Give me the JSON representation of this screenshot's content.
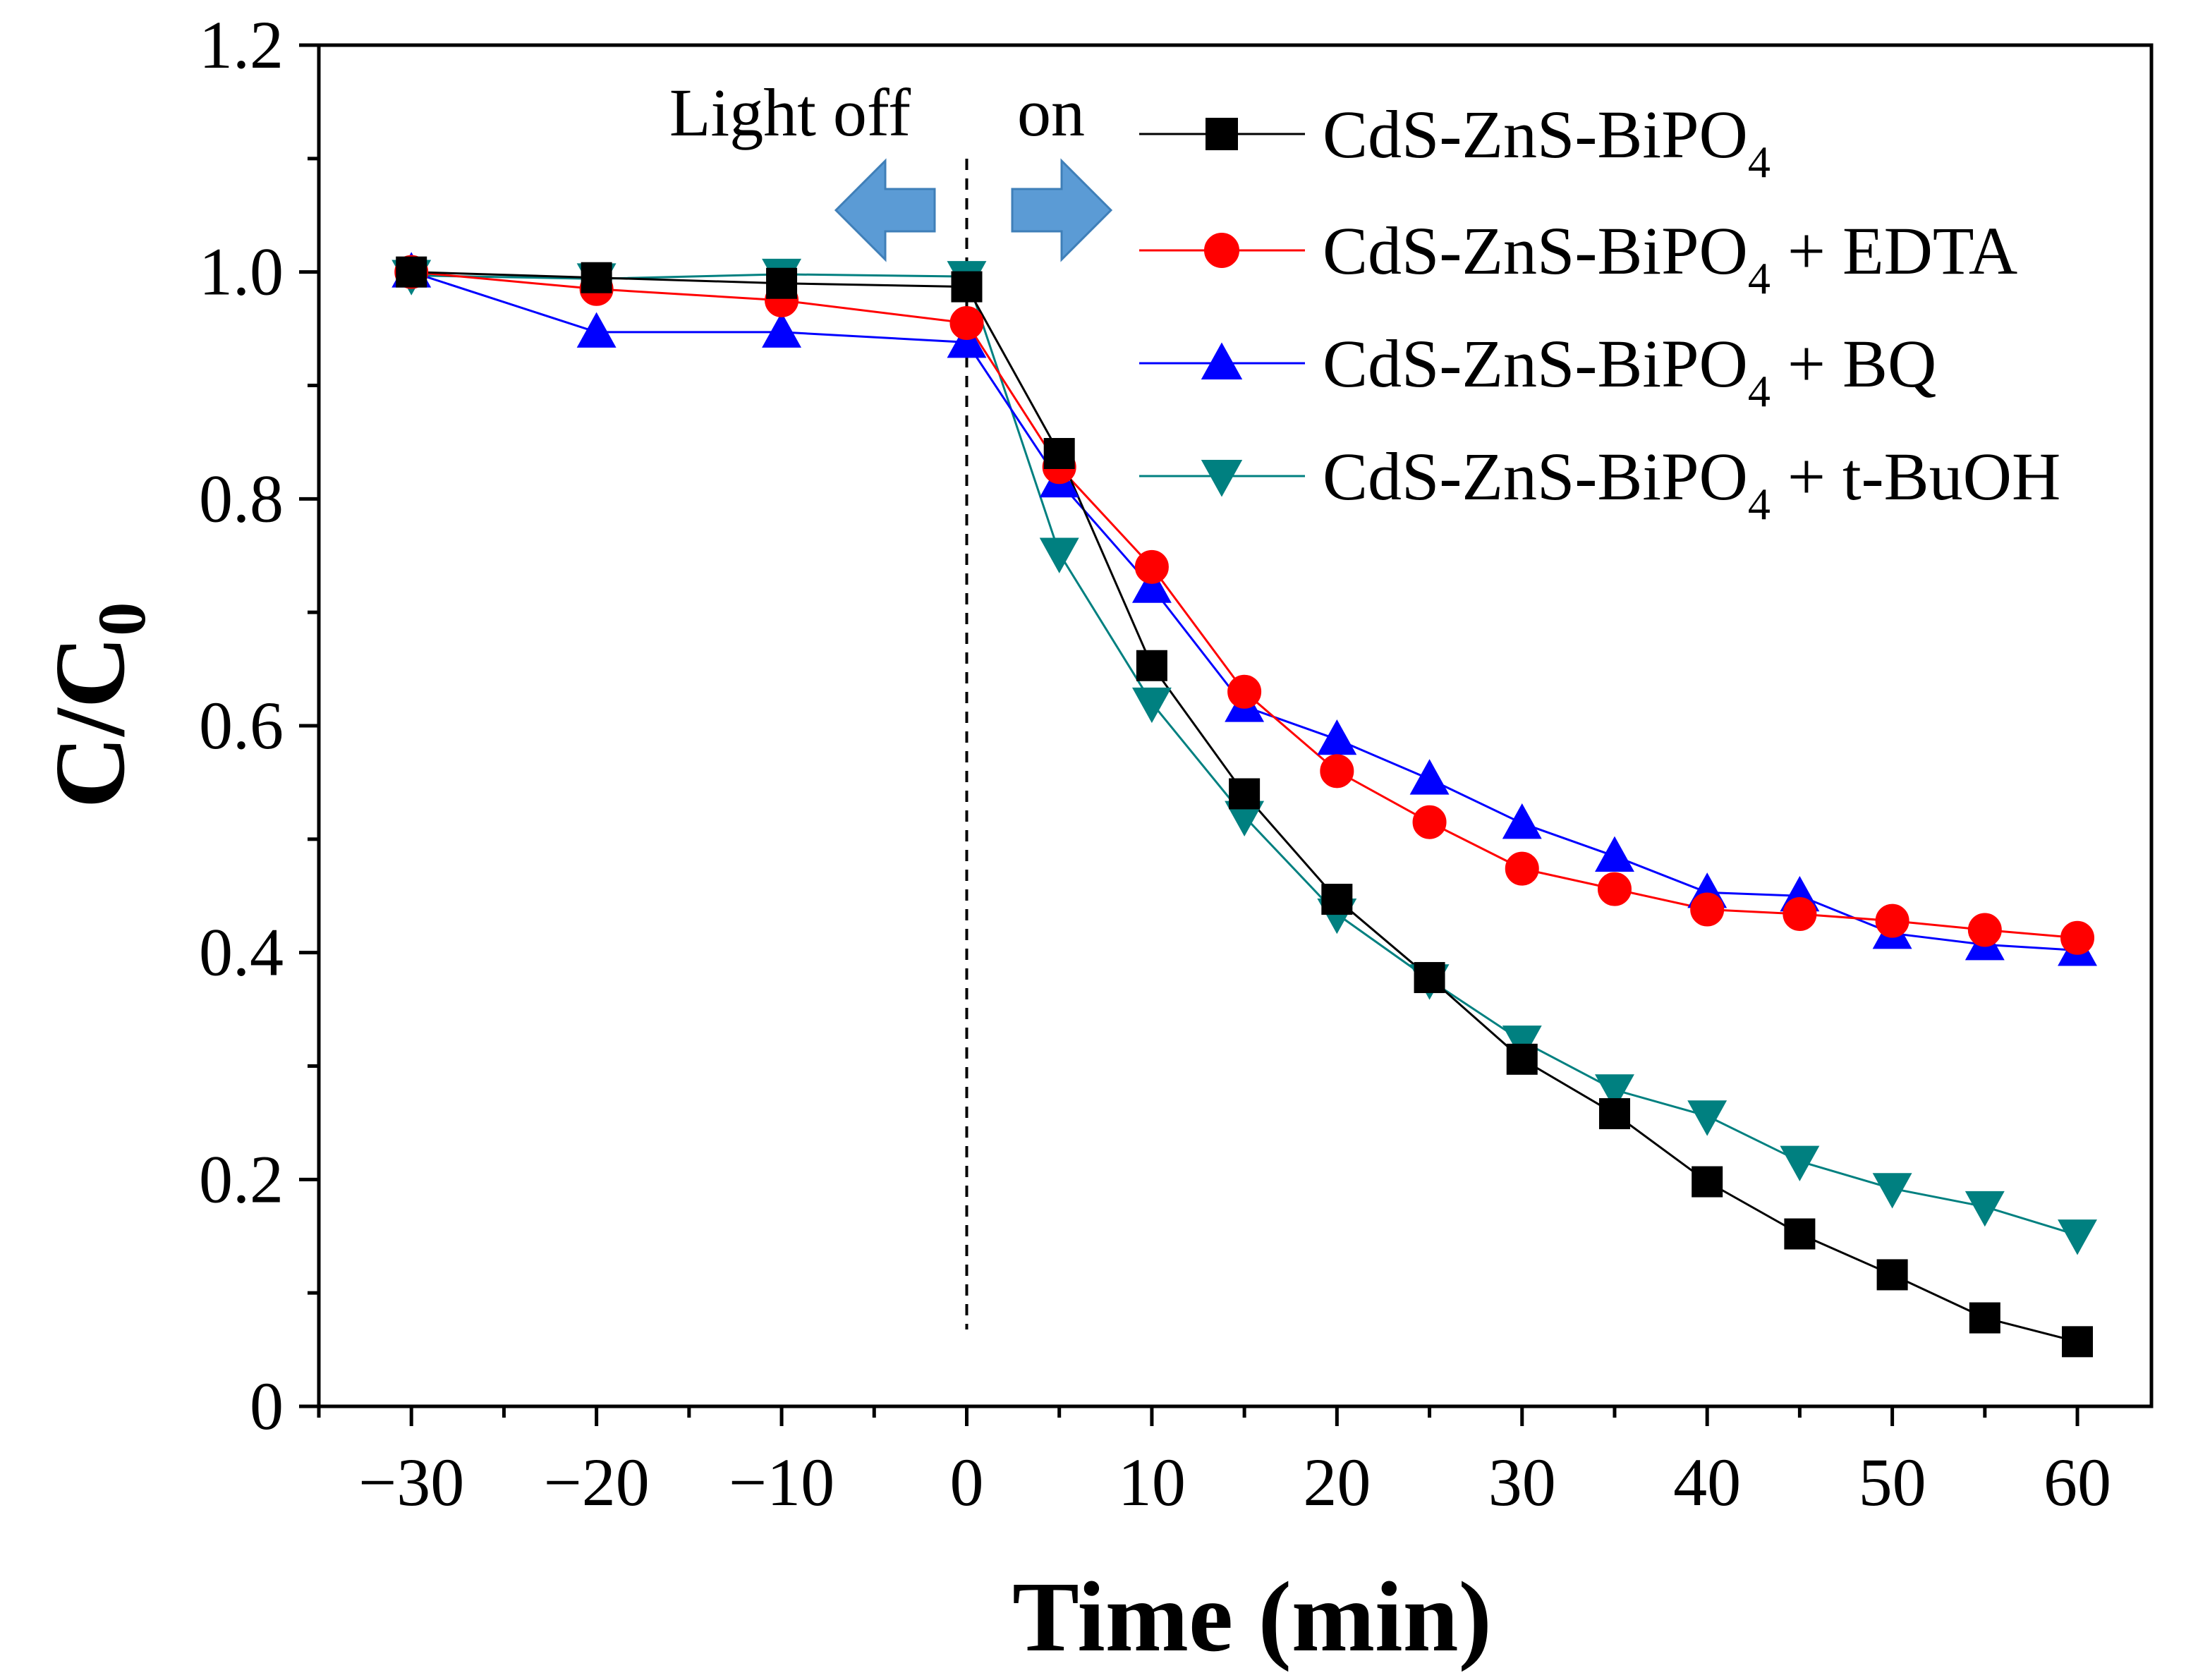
{
  "chart_data": {
    "type": "line",
    "xlabel": "Time (min)",
    "ylabel": "C/C",
    "ylabel_sub": "0",
    "xlim": [
      -35,
      64
    ],
    "ylim": [
      0,
      1.2
    ],
    "xticks": [
      -30,
      -20,
      -10,
      0,
      10,
      20,
      30,
      40,
      50,
      60
    ],
    "xtick_labels": [
      "−30",
      "−20",
      "−10",
      "0",
      "10",
      "20",
      "30",
      "40",
      "50",
      "60"
    ],
    "yticks": [
      0,
      0.2,
      0.4,
      0.6,
      0.8,
      1.0,
      1.2
    ],
    "ytick_labels": [
      "0",
      "0.2",
      "0.4",
      "0.6",
      "0.8",
      "1.0",
      "1.2"
    ],
    "divider_x": 0,
    "annotations": {
      "light_off": "Light off",
      "light_on": "on",
      "arrow_color": "#5b9bd5"
    },
    "legend_position": "top-right",
    "series": [
      {
        "name": "CdS-ZnS-BiPO4",
        "label_main": "CdS-ZnS-BiPO",
        "label_sub": "4",
        "label_suffix": "",
        "color": "#000000",
        "marker": "square",
        "x": [
          -30,
          -20,
          -10,
          0,
          5,
          10,
          15,
          20,
          25,
          30,
          35,
          40,
          45,
          50,
          55,
          60
        ],
        "y": [
          1.0,
          0.995,
          0.99,
          0.987,
          0.84,
          0.653,
          0.54,
          0.447,
          0.378,
          0.306,
          0.258,
          0.198,
          0.152,
          0.116,
          0.078,
          0.057
        ]
      },
      {
        "name": "CdS-ZnS-BiPO4 + EDTA",
        "label_main": "CdS-ZnS-BiPO",
        "label_sub": "4",
        "label_suffix": " + EDTA",
        "color": "#ff0000",
        "marker": "circle",
        "x": [
          -30,
          -20,
          -10,
          0,
          5,
          10,
          15,
          20,
          25,
          30,
          35,
          40,
          45,
          50,
          55,
          60
        ],
        "y": [
          1.0,
          0.985,
          0.975,
          0.955,
          0.828,
          0.74,
          0.63,
          0.56,
          0.515,
          0.474,
          0.456,
          0.438,
          0.434,
          0.428,
          0.42,
          0.413
        ]
      },
      {
        "name": "CdS-ZnS-BiPO4 + BQ",
        "label_main": "CdS-ZnS-BiPO",
        "label_sub": "4",
        "label_suffix": " + BQ",
        "color": "#0000ff",
        "marker": "triangle-up",
        "x": [
          -30,
          -20,
          -10,
          0,
          5,
          10,
          15,
          20,
          25,
          30,
          35,
          40,
          45,
          50,
          55,
          60
        ],
        "y": [
          1.0,
          0.947,
          0.947,
          0.938,
          0.815,
          0.722,
          0.617,
          0.588,
          0.553,
          0.514,
          0.485,
          0.453,
          0.45,
          0.417,
          0.407,
          0.402
        ]
      },
      {
        "name": "CdS-ZnS-BiPO4 + t-BuOH",
        "label_main": "CdS-ZnS-BiPO",
        "label_sub": "4",
        "label_suffix": " + t-BuOH",
        "color": "#008080",
        "marker": "triangle-down",
        "x": [
          -30,
          -20,
          -10,
          0,
          5,
          10,
          15,
          20,
          25,
          30,
          35,
          40,
          45,
          50,
          55,
          60
        ],
        "y": [
          0.997,
          0.994,
          0.998,
          0.996,
          0.752,
          0.62,
          0.52,
          0.434,
          0.376,
          0.322,
          0.279,
          0.256,
          0.216,
          0.192,
          0.176,
          0.151
        ]
      }
    ]
  }
}
